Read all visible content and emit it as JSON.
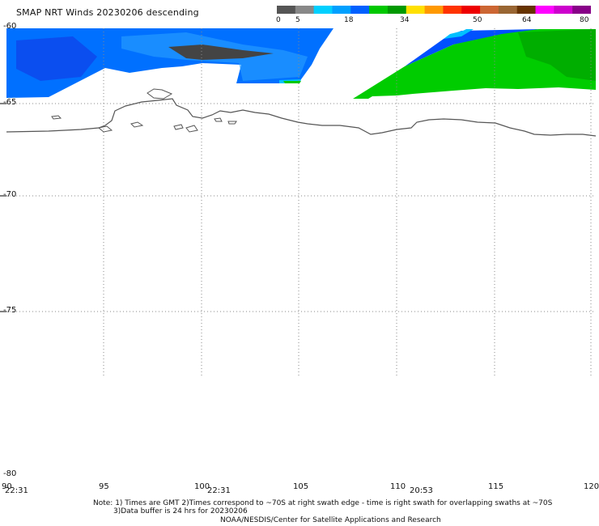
{
  "title": "SMAP NRT Winds  20230206 descending",
  "colorbar": {
    "labels": [
      "0",
      "5",
      "18",
      "34",
      "50",
      "64",
      "80"
    ],
    "colors": [
      "#555555",
      "#888888",
      "#00d0ff",
      "#00a0ff",
      "#0060ff",
      "#00c800",
      "#009900",
      "#ffe000",
      "#ff9900",
      "#ff3300",
      "#ee0000",
      "#cc6633",
      "#996633",
      "#663300",
      "#ff00ff",
      "#cc00cc",
      "#880088"
    ]
  },
  "lat_labels": [
    "-60",
    "-65",
    "-70",
    "-75",
    "-80"
  ],
  "lon_labels": [
    "90",
    "95",
    "100",
    "105",
    "110",
    "115",
    "120"
  ],
  "swath_times": [
    "22:31",
    "22:31",
    "20:53"
  ],
  "notes": {
    "line1": "Note: 1) Times are GMT 2)Times correspond to ~70S at right swath edge - time is right swath for overlapping swaths at ~70S",
    "line2": "3)Data buffer is 24 hrs for 20230206",
    "line3": "NOAA/NESDIS/Center for Satellite Applications and Research"
  }
}
